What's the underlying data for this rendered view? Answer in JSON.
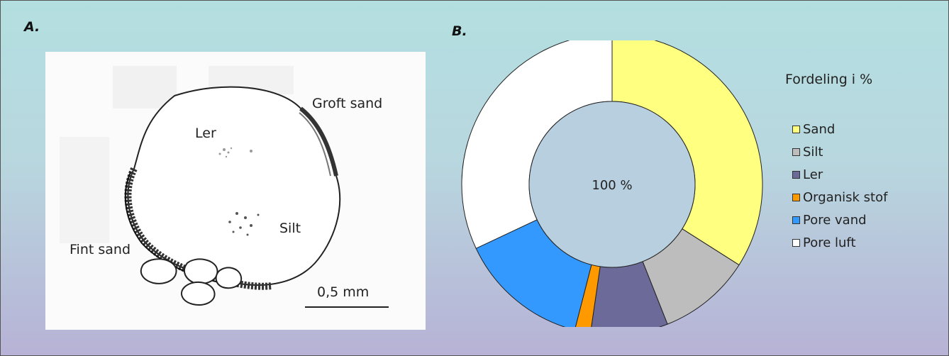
{
  "panels": {
    "a_label": "A.",
    "b_label": "B."
  },
  "sketch": {
    "labels": {
      "groft_sand": "Groft sand",
      "ler": "Ler",
      "silt": "Silt",
      "fint_sand": "Fint sand",
      "scale": "0,5 mm"
    }
  },
  "chart_data": {
    "type": "pie",
    "center_label": "100 %",
    "legend_title": "Fordeling i %",
    "slices": [
      {
        "name": "Sand",
        "value": 34,
        "color": "#ffff80"
      },
      {
        "name": "Silt",
        "value": 10,
        "color": "#bdbdbd"
      },
      {
        "name": "Ler",
        "value": 8.3,
        "color": "#6b6a98"
      },
      {
        "name": "Organisk stof",
        "value": 1.7,
        "color": "#ff9900"
      },
      {
        "name": "Pore vand",
        "value": 14,
        "color": "#3399ff"
      },
      {
        "name": "Pore luft",
        "value": 32,
        "color": "#ffffff"
      }
    ]
  }
}
